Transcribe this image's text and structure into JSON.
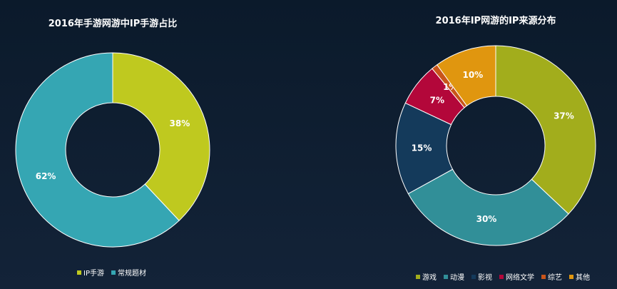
{
  "chart_data": [
    {
      "type": "pie",
      "title": "2016年手游网游中IP手游占比",
      "series": [
        {
          "name": "IP手游",
          "value": 38,
          "label": "38%",
          "color": "#bfc91f"
        },
        {
          "name": "常规题材",
          "value": 62,
          "label": "62%",
          "color": "#35a6b3"
        }
      ],
      "legend_position": "bottom"
    },
    {
      "type": "pie",
      "title": "2016年IP网游的IP来源分布",
      "series": [
        {
          "name": "游戏",
          "value": 37,
          "label": "37%",
          "color": "#a2ad1c"
        },
        {
          "name": "动漫",
          "value": 30,
          "label": "30%",
          "color": "#318f98"
        },
        {
          "name": "影视",
          "value": 15,
          "label": "15%",
          "color": "#143a5b"
        },
        {
          "name": "网络文学",
          "value": 7,
          "label": "7%",
          "color": "#b3073a"
        },
        {
          "name": "综艺",
          "value": 1,
          "label": "1%",
          "color": "#c9551a"
        },
        {
          "name": "其他",
          "value": 10,
          "label": "10%",
          "color": "#e0960f"
        }
      ],
      "legend_position": "bottom"
    }
  ]
}
